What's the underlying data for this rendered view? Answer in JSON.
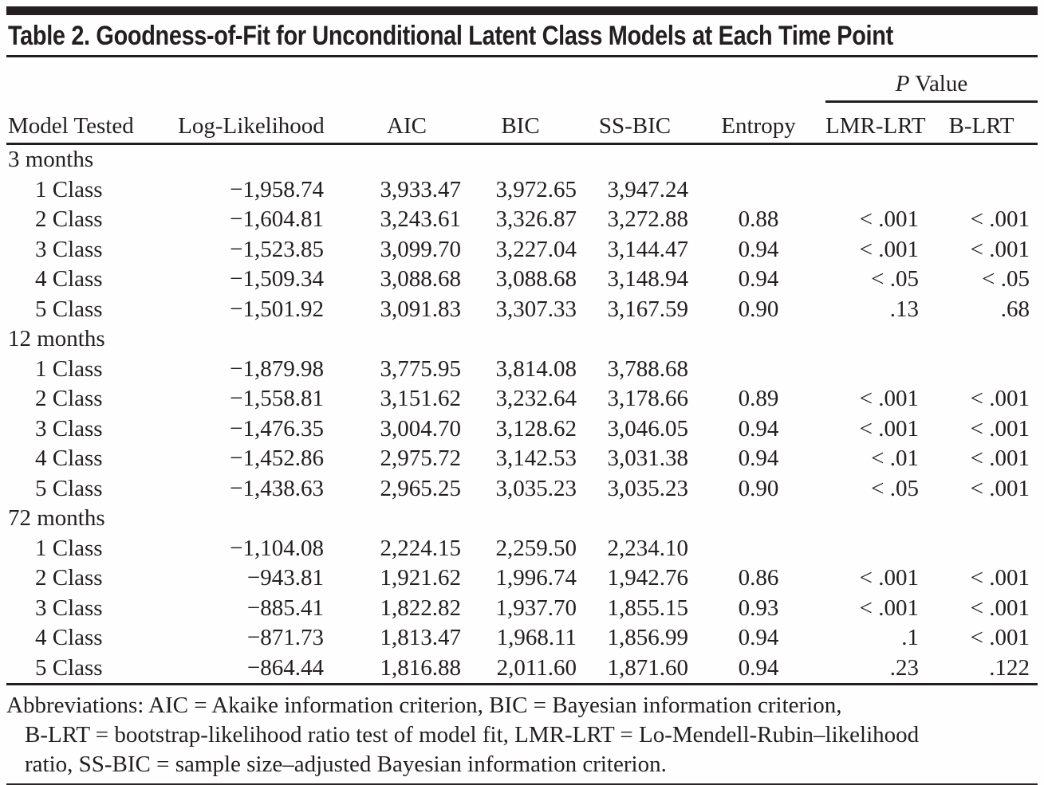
{
  "title": "Table 2. Goodness-of-Fit for Unconditional Latent Class Models at Each Time Point",
  "header": {
    "p_value": {
      "italic": "P",
      "rest": " Value"
    },
    "columns": [
      "Model Tested",
      "Log-Likelihood",
      "AIC",
      "BIC",
      "SS-BIC",
      "Entropy",
      "LMR-LRT",
      "B-LRT"
    ]
  },
  "table": {
    "sections": [
      {
        "label": "3 months",
        "rows": [
          {
            "model": "1 Class",
            "ll": "−1,958.74",
            "aic": "3,933.47",
            "bic": "3,972.65",
            "ssbic": "3,947.24",
            "entropy": "",
            "lmr": "",
            "blrt": ""
          },
          {
            "model": "2 Class",
            "ll": "−1,604.81",
            "aic": "3,243.61",
            "bic": "3,326.87",
            "ssbic": "3,272.88",
            "entropy": "0.88",
            "lmr": "< .001",
            "blrt": "< .001"
          },
          {
            "model": "3 Class",
            "ll": "−1,523.85",
            "aic": "3,099.70",
            "bic": "3,227.04",
            "ssbic": "3,144.47",
            "entropy": "0.94",
            "lmr": "< .001",
            "blrt": "< .001"
          },
          {
            "model": "4 Class",
            "ll": "−1,509.34",
            "aic": "3,088.68",
            "bic": "3,088.68",
            "ssbic": "3,148.94",
            "entropy": "0.94",
            "lmr": "< .05",
            "blrt": "< .05"
          },
          {
            "model": "5 Class",
            "ll": "−1,501.92",
            "aic": "3,091.83",
            "bic": "3,307.33",
            "ssbic": "3,167.59",
            "entropy": "0.90",
            "lmr": ".13",
            "blrt": ".68"
          }
        ]
      },
      {
        "label": "12 months",
        "rows": [
          {
            "model": "1 Class",
            "ll": "−1,879.98",
            "aic": "3,775.95",
            "bic": "3,814.08",
            "ssbic": "3,788.68",
            "entropy": "",
            "lmr": "",
            "blrt": ""
          },
          {
            "model": "2 Class",
            "ll": "−1,558.81",
            "aic": "3,151.62",
            "bic": "3,232.64",
            "ssbic": "3,178.66",
            "entropy": "0.89",
            "lmr": "< .001",
            "blrt": "< .001"
          },
          {
            "model": "3 Class",
            "ll": "−1,476.35",
            "aic": "3,004.70",
            "bic": "3,128.62",
            "ssbic": "3,046.05",
            "entropy": "0.94",
            "lmr": "< .001",
            "blrt": "< .001"
          },
          {
            "model": "4 Class",
            "ll": "−1,452.86",
            "aic": "2,975.72",
            "bic": "3,142.53",
            "ssbic": "3,031.38",
            "entropy": "0.94",
            "lmr": "< .01",
            "blrt": "< .001"
          },
          {
            "model": "5 Class",
            "ll": "−1,438.63",
            "aic": "2,965.25",
            "bic": "3,035.23",
            "ssbic": "3,035.23",
            "entropy": "0.90",
            "lmr": "< .05",
            "blrt": "< .001"
          }
        ]
      },
      {
        "label": "72 months",
        "rows": [
          {
            "model": "1 Class",
            "ll": "−1,104.08",
            "aic": "2,224.15",
            "bic": "2,259.50",
            "ssbic": "2,234.10",
            "entropy": "",
            "lmr": "",
            "blrt": ""
          },
          {
            "model": "2 Class",
            "ll": "−943.81",
            "aic": "1,921.62",
            "bic": "1,996.74",
            "ssbic": "1,942.76",
            "entropy": "0.86",
            "lmr": "< .001",
            "blrt": "< .001"
          },
          {
            "model": "3 Class",
            "ll": "−885.41",
            "aic": "1,822.82",
            "bic": "1,937.70",
            "ssbic": "1,855.15",
            "entropy": "0.93",
            "lmr": "< .001",
            "blrt": "< .001"
          },
          {
            "model": "4 Class",
            "ll": "−871.73",
            "aic": "1,813.47",
            "bic": "1,968.11",
            "ssbic": "1,856.99",
            "entropy": "0.94",
            "lmr": ".1",
            "blrt": "< .001"
          },
          {
            "model": "5 Class",
            "ll": "−864.44",
            "aic": "1,816.88",
            "bic": "2,011.60",
            "ssbic": "1,871.60",
            "entropy": "0.94",
            "lmr": ".23",
            "blrt": ".122"
          }
        ]
      }
    ]
  },
  "footnote": {
    "lines": [
      "Abbreviations: AIC = Akaike information criterion, BIC = Bayesian information criterion,",
      "B-LRT = bootstrap-likelihood ratio test of model fit, LMR-LRT = Lo-Mendell-Rubin–likelihood",
      "ratio, SS-BIC = sample size–adjusted Bayesian information criterion."
    ]
  },
  "colors": {
    "ink": "#231f20",
    "background": "#fefefe"
  }
}
